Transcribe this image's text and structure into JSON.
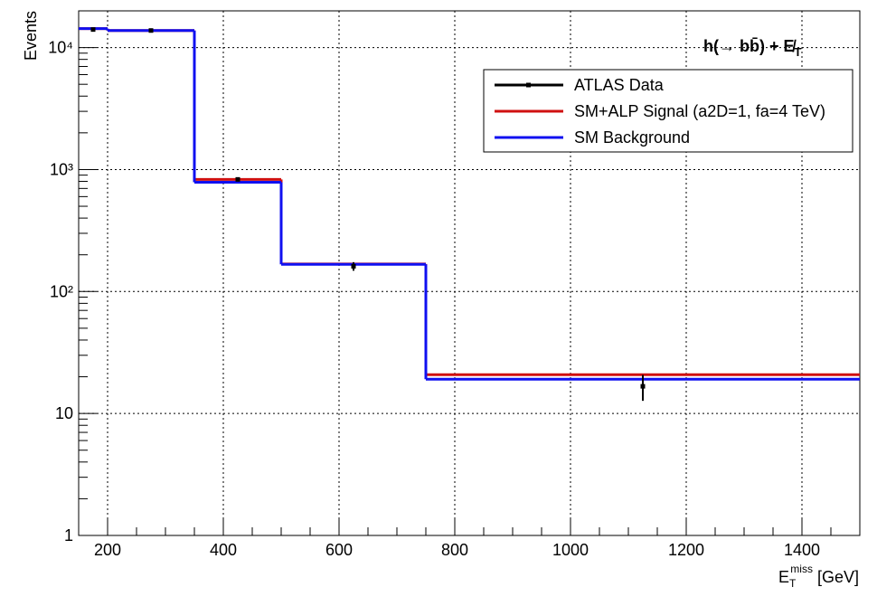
{
  "chart_data": {
    "type": "step-histogram",
    "annotation": [
      "h(→ bb̄) + E̸",
      "T"
    ],
    "xlabel": [
      "E",
      "T",
      "miss",
      " [GeV]"
    ],
    "ylabel": "Events",
    "xlim": [
      150,
      1500
    ],
    "xticks": [
      200,
      400,
      600,
      800,
      1000,
      1200,
      1400
    ],
    "ylim": [
      1,
      20000
    ],
    "log_y": true,
    "yticks": [
      1,
      10,
      {
        "value": 100,
        "label": "10²"
      },
      {
        "value": 1000,
        "label": "10³"
      },
      {
        "value": 10000,
        "label": "10⁴"
      }
    ],
    "grid": true,
    "bins": [
      150,
      200,
      350,
      500,
      750,
      1500
    ],
    "series": [
      {
        "name": "SM+ALP Signal (a2D=1, fa=4 TeV)",
        "color": "#d01010",
        "values": [
          14300,
          13800,
          830,
          168,
          20.8
        ]
      },
      {
        "name": "SM Background",
        "color": "#1010f0",
        "values": [
          14300,
          13800,
          787,
          167,
          19.1
        ]
      }
    ],
    "data": {
      "name": "ATLAS Data",
      "color": "#000000",
      "x": [
        175,
        275,
        425,
        625,
        1125
      ],
      "values": [
        14060,
        13800,
        830,
        161,
        16.7
      ],
      "errors": [
        119,
        117,
        29,
        13,
        4
      ]
    },
    "legend": "upper right"
  }
}
